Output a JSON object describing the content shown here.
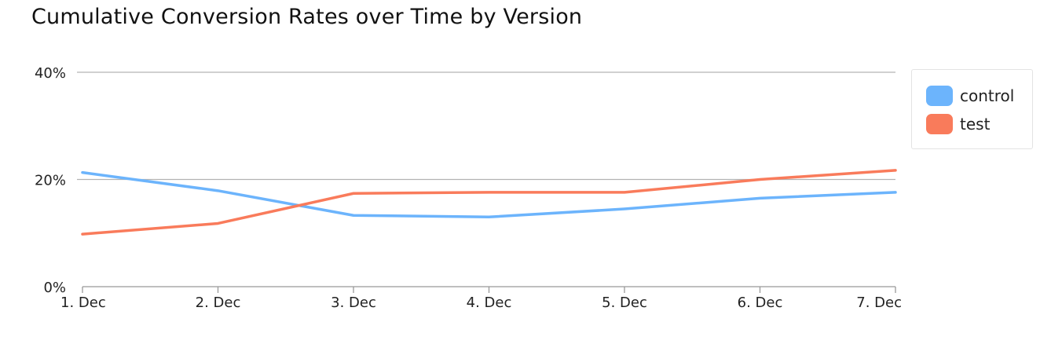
{
  "chart_data": {
    "type": "line",
    "title": "Cumulative Conversion Rates over Time by Version",
    "xlabel": "",
    "ylabel": "",
    "categories": [
      "1. Dec",
      "2. Dec",
      "3. Dec",
      "4. Dec",
      "5. Dec",
      "6. Dec",
      "7. Dec"
    ],
    "y_ticks": [
      "0%",
      "20%",
      "40%"
    ],
    "ylim": [
      0,
      40
    ],
    "grid": true,
    "legend_position": "right",
    "series": [
      {
        "name": "control",
        "color": "#6cb4fc",
        "values": [
          21.3,
          17.9,
          13.3,
          13.0,
          14.5,
          16.5,
          17.6
        ]
      },
      {
        "name": "test",
        "color": "#f97b5b",
        "values": [
          9.8,
          11.8,
          17.4,
          17.6,
          17.6,
          20.0,
          21.7
        ]
      }
    ]
  }
}
